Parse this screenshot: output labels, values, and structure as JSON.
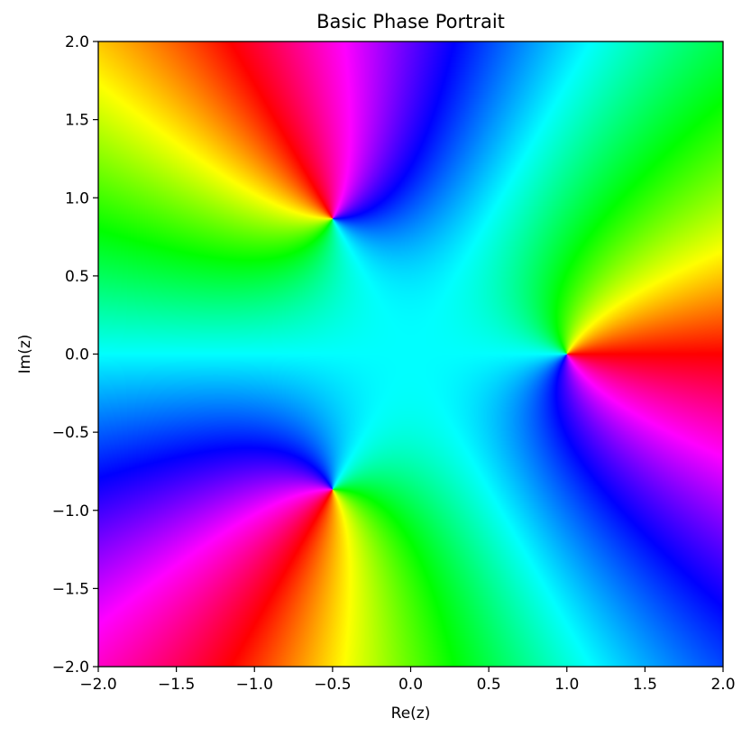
{
  "chart_data": {
    "type": "heatmap",
    "subtype": "domain-coloring phase portrait",
    "title": "Basic Phase Portrait",
    "xlabel": "Re(z)",
    "ylabel": "Im(z)",
    "xlim": [
      -2.0,
      2.0
    ],
    "ylim": [
      -2.0,
      2.0
    ],
    "xticks": [
      -2.0,
      -1.5,
      -1.0,
      -0.5,
      0.0,
      0.5,
      1.0,
      1.5,
      2.0
    ],
    "yticks": [
      -2.0,
      -1.5,
      -1.0,
      -0.5,
      0.0,
      0.5,
      1.0,
      1.5,
      2.0
    ],
    "xtick_labels": [
      "−2.0",
      "−1.5",
      "−1.0",
      "−0.5",
      "0.0",
      "0.5",
      "1.0",
      "1.5",
      "2.0"
    ],
    "ytick_labels": [
      "−2.0",
      "−1.5",
      "−1.0",
      "−0.5",
      "0.0",
      "0.5",
      "1.0",
      "1.5",
      "2.0"
    ],
    "grid": false,
    "colormap": "hsv (phase of f(z))",
    "zeros": [
      {
        "re": 1.0,
        "im": 0.0
      },
      {
        "re": -0.5,
        "im": 0.866
      },
      {
        "re": -0.5,
        "im": -0.866
      }
    ],
    "poles": []
  },
  "colors": {
    "axes": "#000000",
    "background": "#ffffff"
  }
}
